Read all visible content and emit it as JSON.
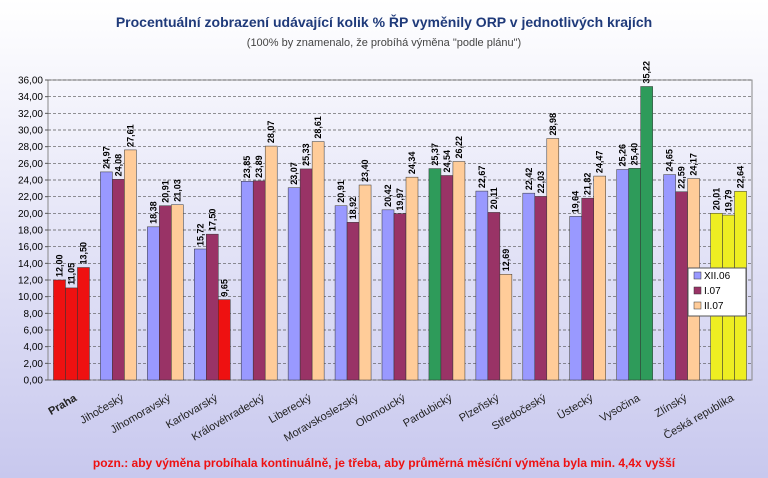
{
  "chart_data": {
    "type": "bar",
    "title": "Procentuální zobrazení udávající kolik % ŘP vyměnily ORP v jednotlivých krajích",
    "subtitle": "(100% by znamenalo, že probíhá výměna \"podle plánu\")",
    "note": "pozn.: aby výměna probíhala kontinuálně, je třeba, aby průměrná měsíční výměna byla min. 4,4x vyšší",
    "categories": [
      "Praha",
      "Jihočeský",
      "Jihomoravský",
      "Karlovarský",
      "Královéhradecký",
      "Liberecký",
      "Moravskoslezský",
      "Olomoucký",
      "Pardubický",
      "Plzeňský",
      "Středočeský",
      "Ústecký",
      "Vysočina",
      "Zlínský",
      "Česká republika"
    ],
    "series": [
      {
        "name": "XII.06",
        "color": "#9999ff",
        "colors": [
          "#ee1111",
          "#9999ff",
          "#9999ff",
          "#9999ff",
          "#9999ff",
          "#9999ff",
          "#9999ff",
          "#9999ff",
          "#2e9b5a",
          "#9999ff",
          "#9999ff",
          "#9999ff",
          "#9999ff",
          "#9999ff",
          "#eeee22"
        ],
        "values": [
          12.0,
          24.97,
          18.38,
          15.72,
          23.85,
          23.07,
          20.91,
          20.42,
          25.37,
          22.67,
          22.42,
          19.64,
          25.26,
          24.65,
          20.01
        ],
        "value_labels": [
          "12,00",
          "24,97",
          "18,38",
          "15,72",
          "23,85",
          "23,07",
          "20,91",
          "20,42",
          "25,37",
          "22,67",
          "22,42",
          "19,64",
          "25,26",
          "24,65",
          "20,01"
        ]
      },
      {
        "name": "I.07",
        "color": "#993366",
        "colors": [
          "#ee1111",
          "#993366",
          "#993366",
          "#993366",
          "#993366",
          "#993366",
          "#993366",
          "#993366",
          "#993366",
          "#993366",
          "#993366",
          "#993366",
          "#2e9b5a",
          "#993366",
          "#eeee22"
        ],
        "values": [
          11.05,
          24.08,
          20.91,
          17.5,
          23.89,
          25.33,
          18.92,
          19.97,
          24.54,
          20.11,
          22.03,
          21.82,
          25.4,
          22.59,
          19.79
        ],
        "value_labels": [
          "11,05",
          "24,08",
          "20,91",
          "17,50",
          "23,89",
          "25,33",
          "18,92",
          "19,97",
          "24,54",
          "20,11",
          "22,03",
          "21,82",
          "25,40",
          "22,59",
          "19,79"
        ]
      },
      {
        "name": "II.07",
        "color": "#ffcc99",
        "colors": [
          "#ee1111",
          "#ffcc99",
          "#ffcc99",
          "#ee1111",
          "#ffcc99",
          "#ffcc99",
          "#ffcc99",
          "#ffcc99",
          "#ffcc99",
          "#ffcc99",
          "#ffcc99",
          "#ffcc99",
          "#2e9b5a",
          "#ffcc99",
          "#eeee22"
        ],
        "values": [
          13.5,
          27.61,
          21.03,
          9.65,
          28.07,
          28.61,
          23.4,
          24.34,
          26.22,
          12.69,
          28.98,
          24.47,
          35.22,
          24.17,
          22.64
        ],
        "value_labels": [
          "13,50",
          "27,61",
          "21,03",
          "9,65",
          "28,07",
          "28,61",
          "23,40",
          "24,34",
          "26,22",
          "12,69",
          "28,98",
          "24,47",
          "35,22",
          "24,17",
          "22,64"
        ]
      }
    ],
    "ylim": [
      0,
      36
    ],
    "yticks": [
      {
        "value": 0,
        "label": "0,00"
      },
      {
        "value": 2,
        "label": "2,00"
      },
      {
        "value": 4,
        "label": "4,00"
      },
      {
        "value": 6,
        "label": "6,00"
      },
      {
        "value": 8,
        "label": "8,00"
      },
      {
        "value": 10,
        "label": "10,00"
      },
      {
        "value": 12,
        "label": "12,00"
      },
      {
        "value": 14,
        "label": "14,00"
      },
      {
        "value": 16,
        "label": "16,00"
      },
      {
        "value": 18,
        "label": "18,00"
      },
      {
        "value": 20,
        "label": "20,00"
      },
      {
        "value": 22,
        "label": "22,00"
      },
      {
        "value": 24,
        "label": "24,00"
      },
      {
        "value": 26,
        "label": "26,00"
      },
      {
        "value": 28,
        "label": "28,00"
      },
      {
        "value": 30,
        "label": "30,00"
      },
      {
        "value": 32,
        "label": "32,00"
      },
      {
        "value": 34,
        "label": "34,00"
      },
      {
        "value": 36,
        "label": "36,00"
      }
    ],
    "grid": true,
    "legend": "right"
  }
}
